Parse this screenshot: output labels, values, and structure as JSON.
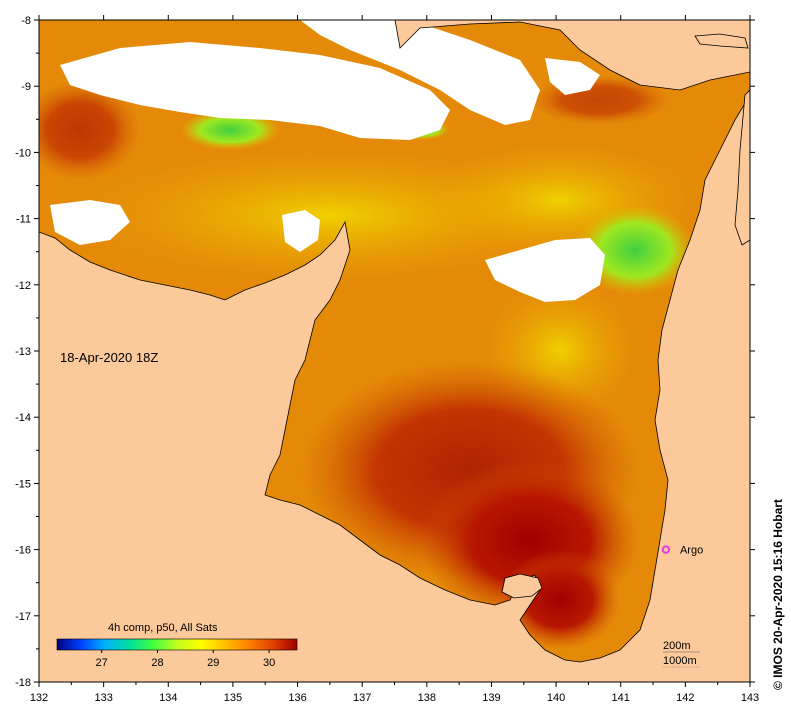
{
  "map": {
    "timestamp": "18-Apr-2020 18Z",
    "composite_label": "4h comp, p50, All Sats",
    "credit": "© IMOS 20-Apr-2020 15:16 Hobart",
    "argo_label": "Argo",
    "depth_contours": [
      "200m",
      "1000m"
    ],
    "colors": {
      "land": "#fbc99a",
      "cloud": "#ffffff",
      "argo_marker": "#e040e0",
      "coast": "#000000"
    }
  },
  "colorbar": {
    "ticks": [
      "27",
      "28",
      "29",
      "30"
    ],
    "tick_values": [
      27,
      28,
      29,
      30
    ],
    "range": [
      26.2,
      30.5
    ],
    "colors": [
      "#000080",
      "#0040ff",
      "#00b0ff",
      "#00e0a0",
      "#40ff40",
      "#c0ff20",
      "#ffff00",
      "#ffc000",
      "#ff8000",
      "#e04000",
      "#a00000"
    ]
  },
  "axes": {
    "lon_ticks": [
      "132",
      "133",
      "134",
      "135",
      "136",
      "137",
      "138",
      "139",
      "140",
      "141",
      "142",
      "143"
    ],
    "lon_values": [
      132,
      133,
      134,
      135,
      136,
      137,
      138,
      139,
      140,
      141,
      142,
      143
    ],
    "lat_ticks": [
      "-8",
      "-9",
      "-10",
      "-11",
      "-12",
      "-13",
      "-14",
      "-15",
      "-16",
      "-17",
      "-18"
    ],
    "lat_values": [
      -8,
      -9,
      -10,
      -11,
      -12,
      -13,
      -14,
      -15,
      -16,
      -17,
      -18
    ],
    "lon_range": [
      132,
      143
    ],
    "lat_range": [
      -18,
      -8
    ]
  },
  "argo": {
    "lon": 141.7,
    "lat": -16.0
  }
}
